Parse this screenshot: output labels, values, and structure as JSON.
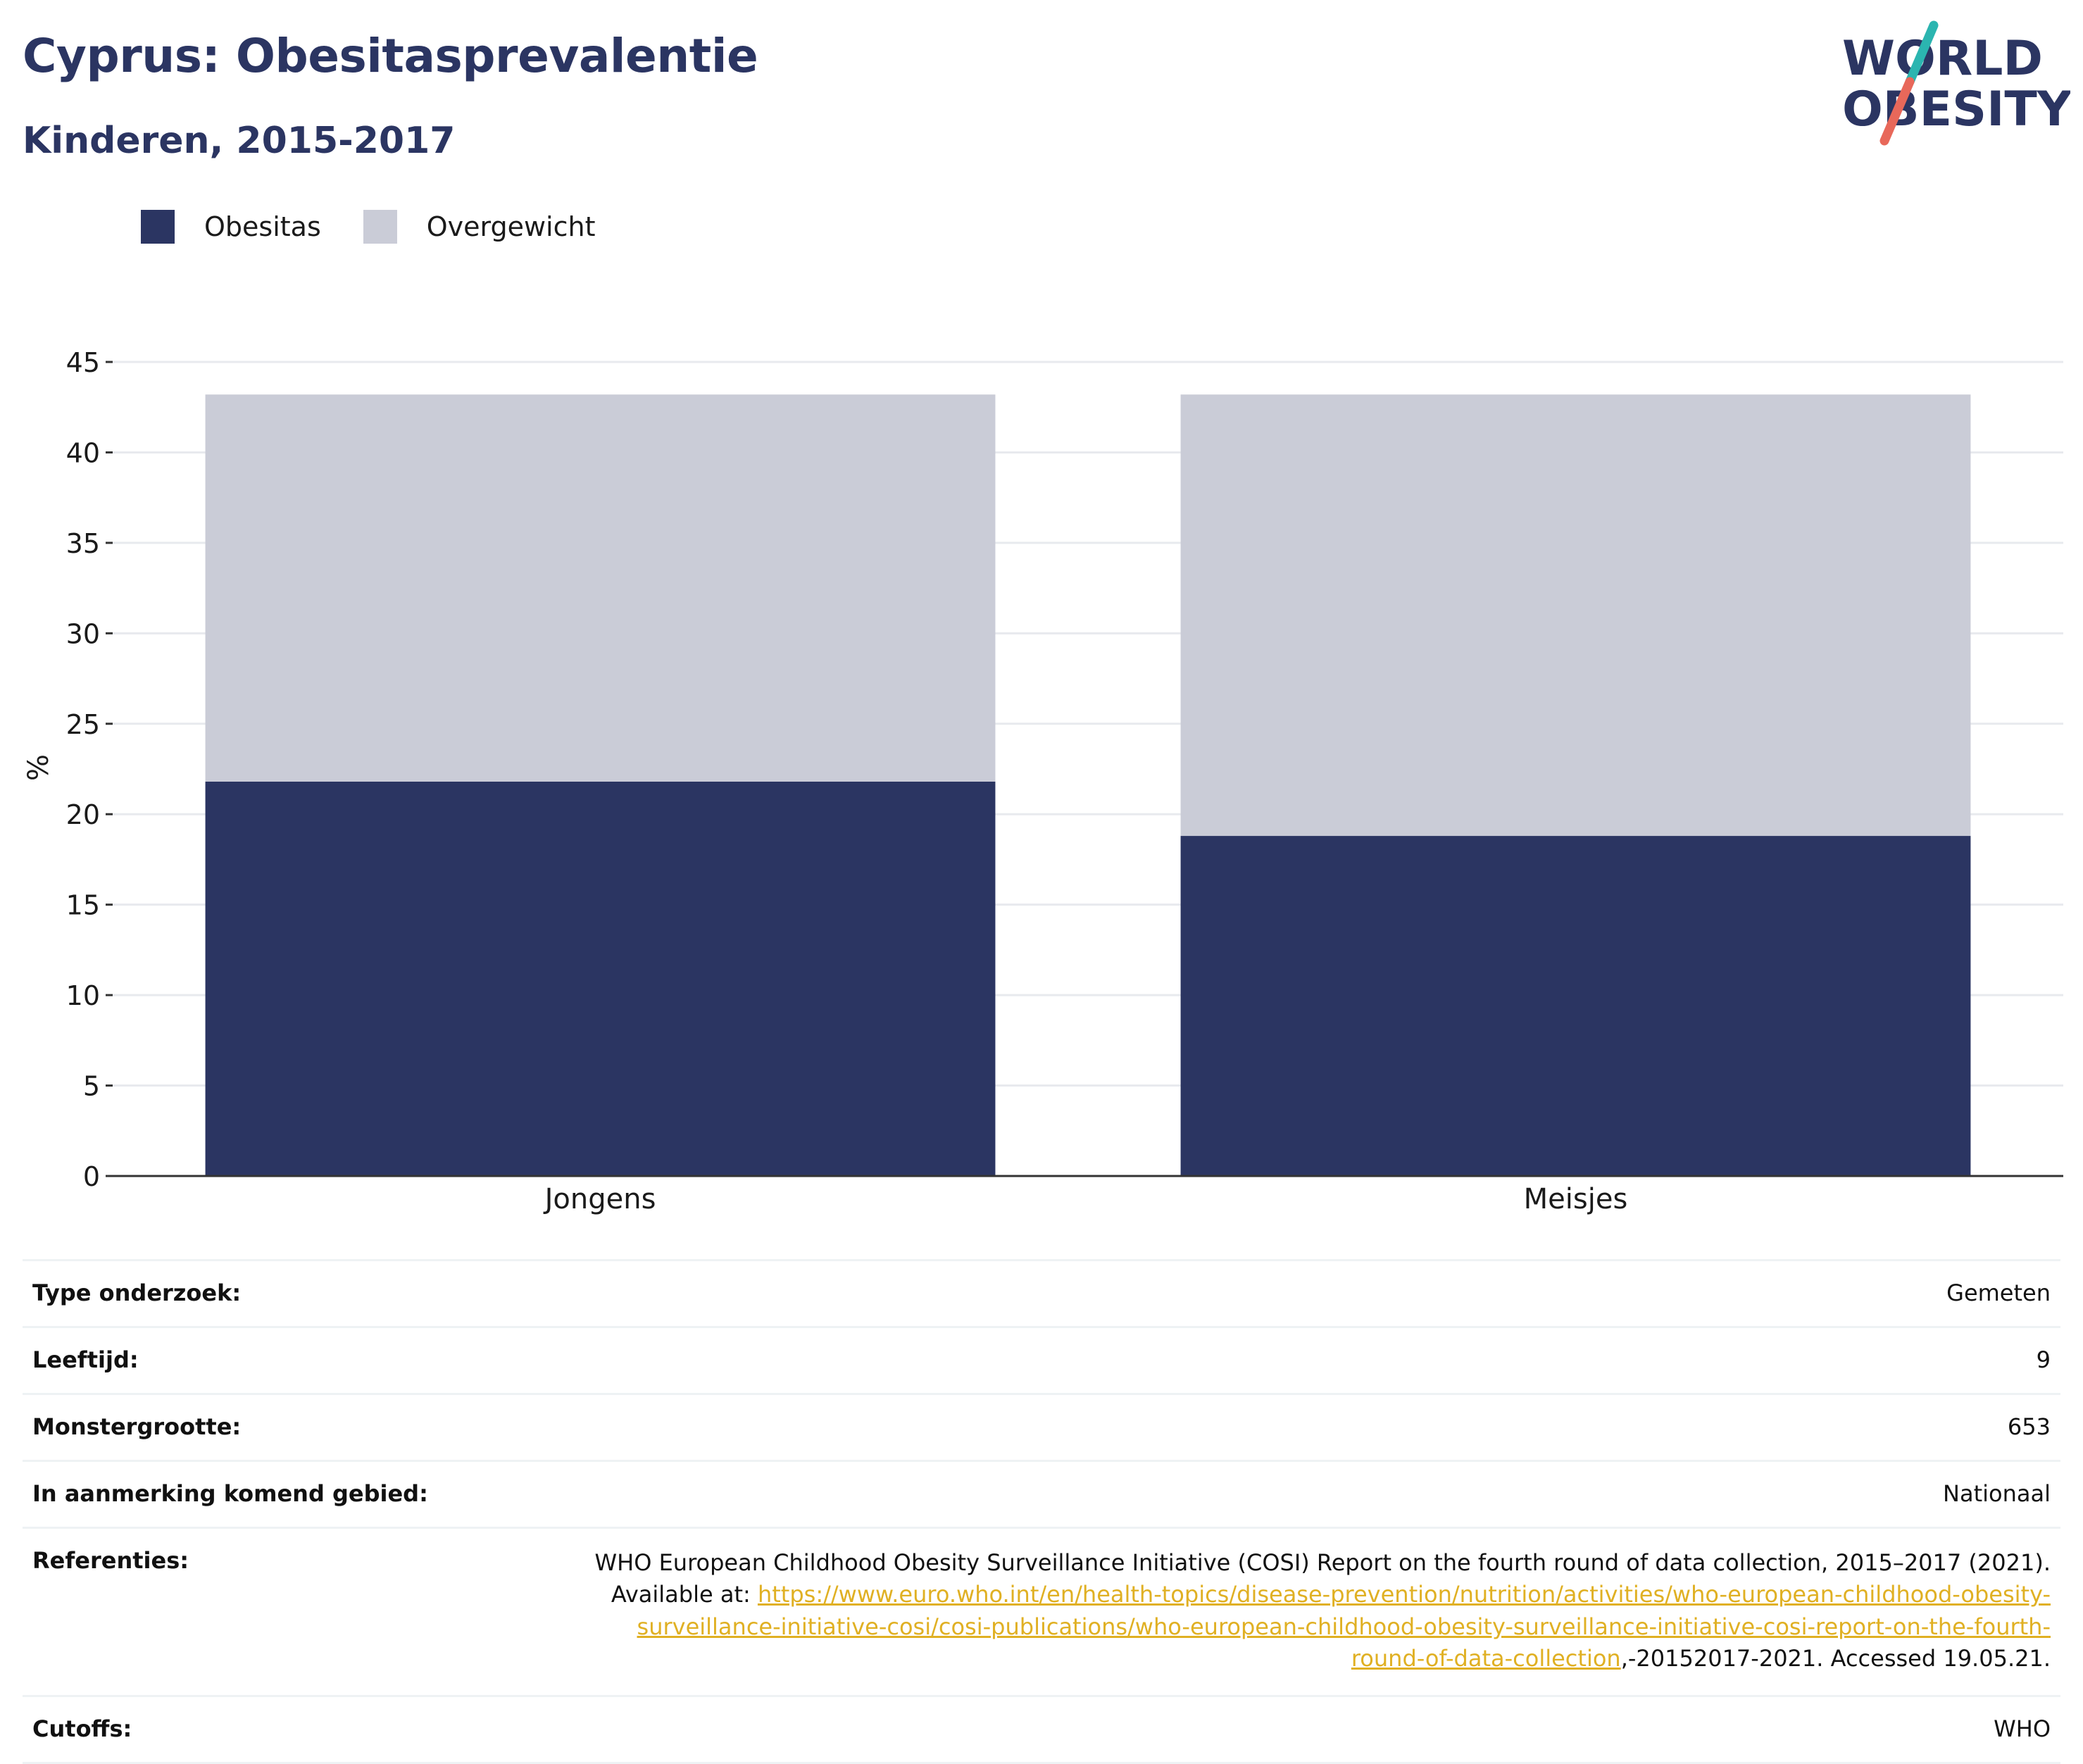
{
  "header": {
    "title": "Cyprus: Obesitasprevalentie",
    "subtitle": "Kinderen, 2015-2017"
  },
  "logo": {
    "line1": "WORLD",
    "line2": "OBESITY",
    "colors": {
      "text": "#2b3562",
      "slash_top": "#2bb5b0",
      "slash_bottom": "#e8685a"
    }
  },
  "legend": [
    {
      "label": "Obesitas",
      "color": "#2b3562"
    },
    {
      "label": "Overgewicht",
      "color": "#caccd7"
    }
  ],
  "chart_data": {
    "type": "bar",
    "stacked": true,
    "title": "",
    "xlabel": "",
    "ylabel": "%",
    "ylim": [
      0,
      45
    ],
    "yticks": [
      0,
      5,
      10,
      15,
      20,
      25,
      30,
      35,
      40,
      45
    ],
    "grid": true,
    "legend_position": "top-left",
    "categories": [
      "Jongens",
      "Meisjes"
    ],
    "series": [
      {
        "name": "Obesitas",
        "color": "#2b3562",
        "values": [
          21.8,
          18.8
        ]
      },
      {
        "name": "Overgewicht",
        "color": "#caccd7",
        "values": [
          21.4,
          24.4
        ]
      }
    ]
  },
  "details": {
    "survey_type": {
      "label": "Type onderzoek:",
      "value": "Gemeten"
    },
    "age": {
      "label": "Leeftijd:",
      "value": "9"
    },
    "sample_size": {
      "label": "Monstergrootte:",
      "value": "653"
    },
    "area": {
      "label": "In aanmerking komend gebied:",
      "value": "Nationaal"
    },
    "references": {
      "label": "Referenties:",
      "text_before": "WHO European Childhood Obesity Surveillance Initiative (COSI) Report on the fourth round of data collection, 2015–2017 (2021). Available at: ",
      "link": "https://www.euro.who.int/en/health-topics/disease-prevention/nutrition/activities/who-european-childhood-obesity-surveillance-initiative-cosi/cosi-publications/who-european-childhood-obesity-surveillance-initiative-cosi-report-on-the-fourth-round-of-data-collection",
      "text_after": ",-20152017-2021. Accessed 19.05.21."
    },
    "cutoffs": {
      "label": "Cutoffs:",
      "value": "WHO"
    }
  }
}
